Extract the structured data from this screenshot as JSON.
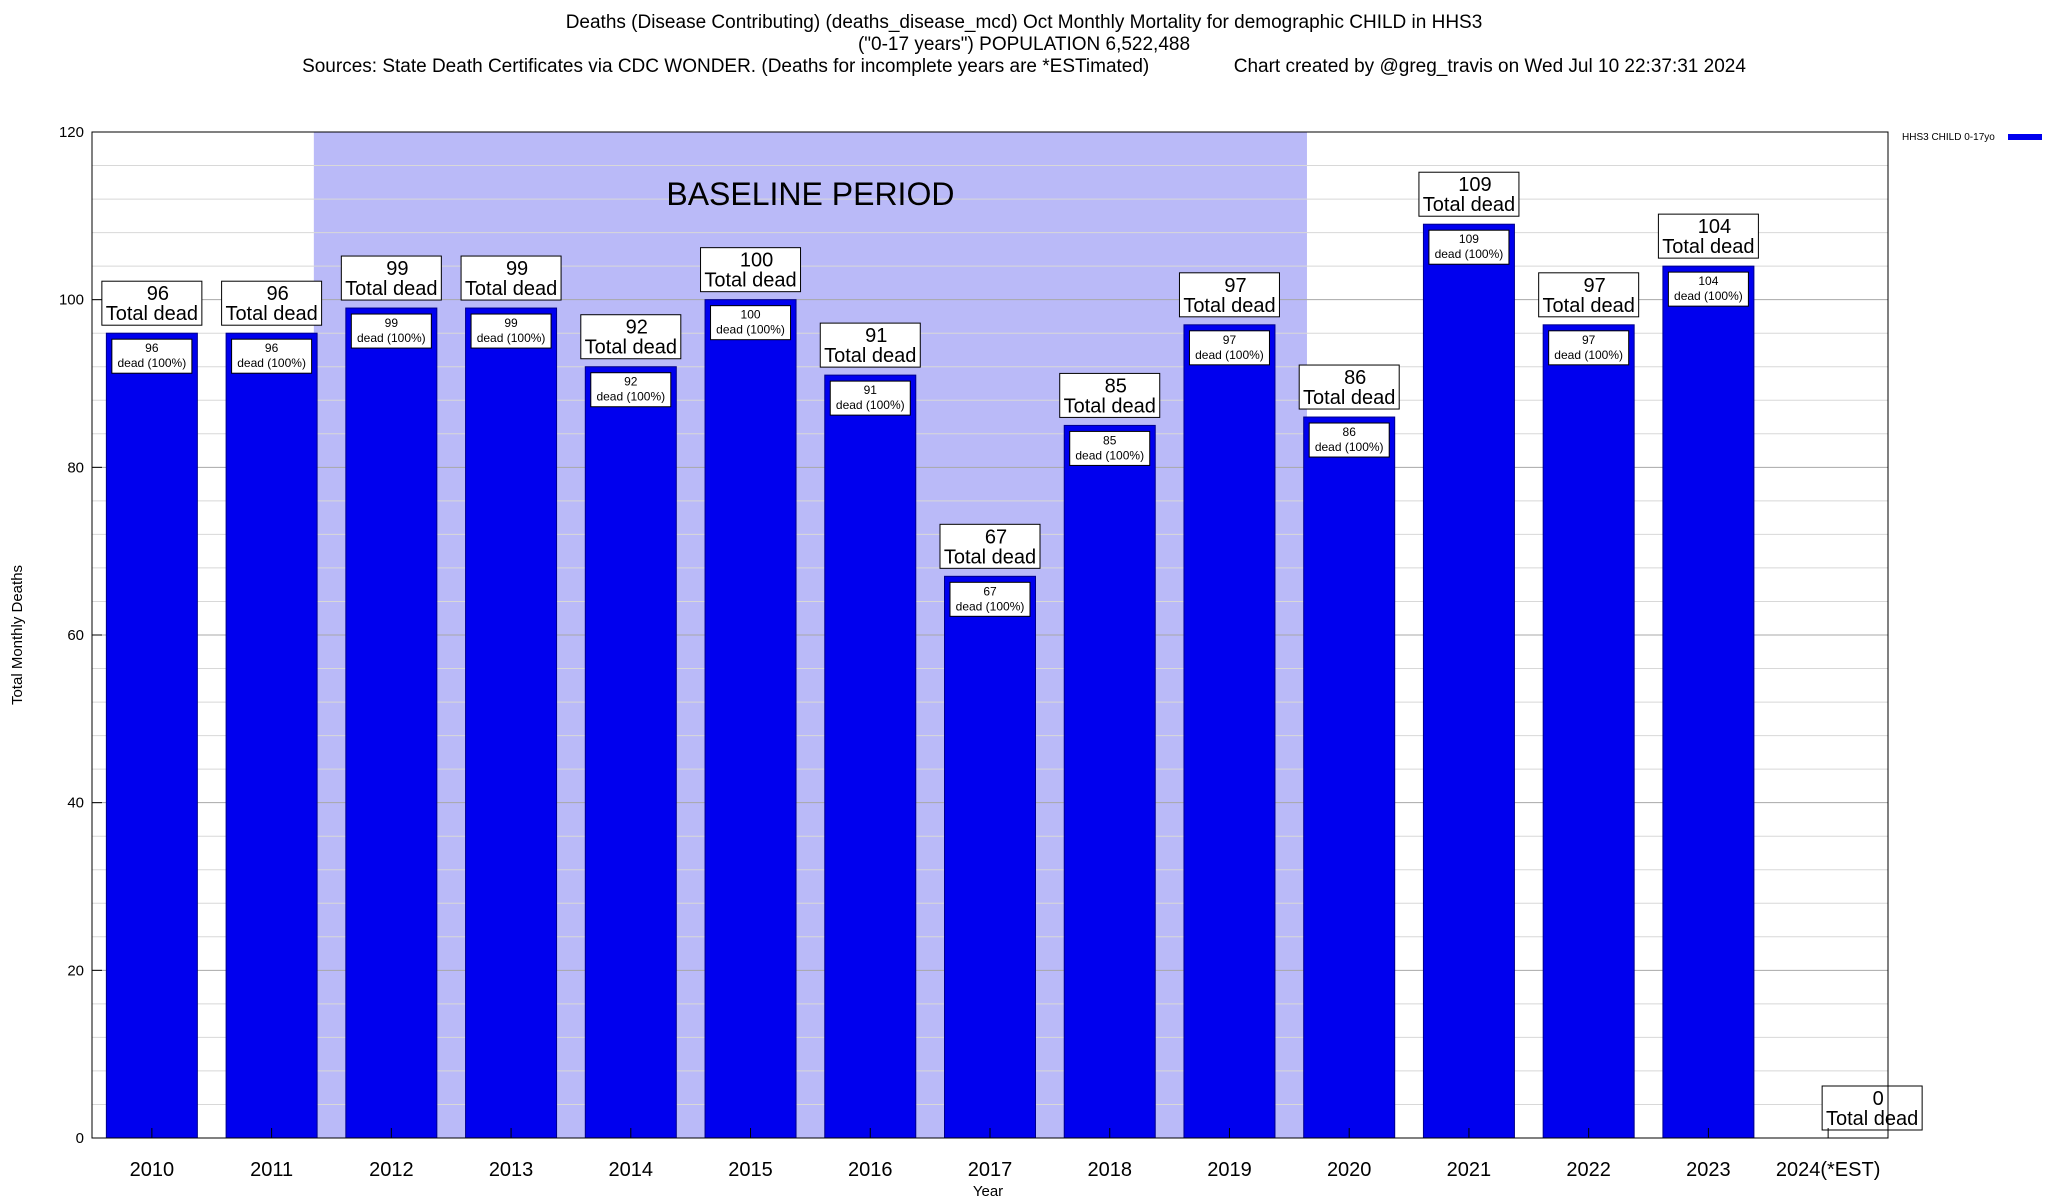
{
  "header": {
    "title_line1": "Deaths (Disease Contributing) (deaths_disease_mcd) Oct Monthly Mortality for demographic CHILD in HHS3",
    "title_line2": "(\"0-17 years\") POPULATION 6,522,488",
    "title_line3": "Sources: State Death Certificates via CDC WONDER. (Deaths for incomplete years are *ESTimated)                Chart created by @greg_travis on Wed Jul 10 22:37:31 2024"
  },
  "chart_data": {
    "type": "bar",
    "xlabel": "Year",
    "ylabel": "Total Monthly Deaths",
    "ylim": [
      0,
      120
    ],
    "y_major_ticks": [
      0,
      20,
      40,
      60,
      80,
      100,
      120
    ],
    "y_minor_step": 4,
    "categories": [
      "2010",
      "2011",
      "2012",
      "2013",
      "2014",
      "2015",
      "2016",
      "2017",
      "2018",
      "2019",
      "2020",
      "2021",
      "2022",
      "2023",
      "2024(*EST)"
    ],
    "series": [
      {
        "name": "HHS3 CHILD 0-17yo",
        "color": "#0000ee",
        "values": [
          96,
          96,
          99,
          99,
          92,
          100,
          91,
          67,
          85,
          97,
          86,
          109,
          97,
          104,
          0
        ]
      }
    ],
    "total_label_suffix": "Total dead",
    "inner_label_suffix": "dead (100%)",
    "baseline": {
      "label": "BASELINE PERIOD",
      "from": "2012",
      "to": "2019",
      "color": "#babaf8"
    },
    "legend_placement": "top-right",
    "grid": true
  }
}
